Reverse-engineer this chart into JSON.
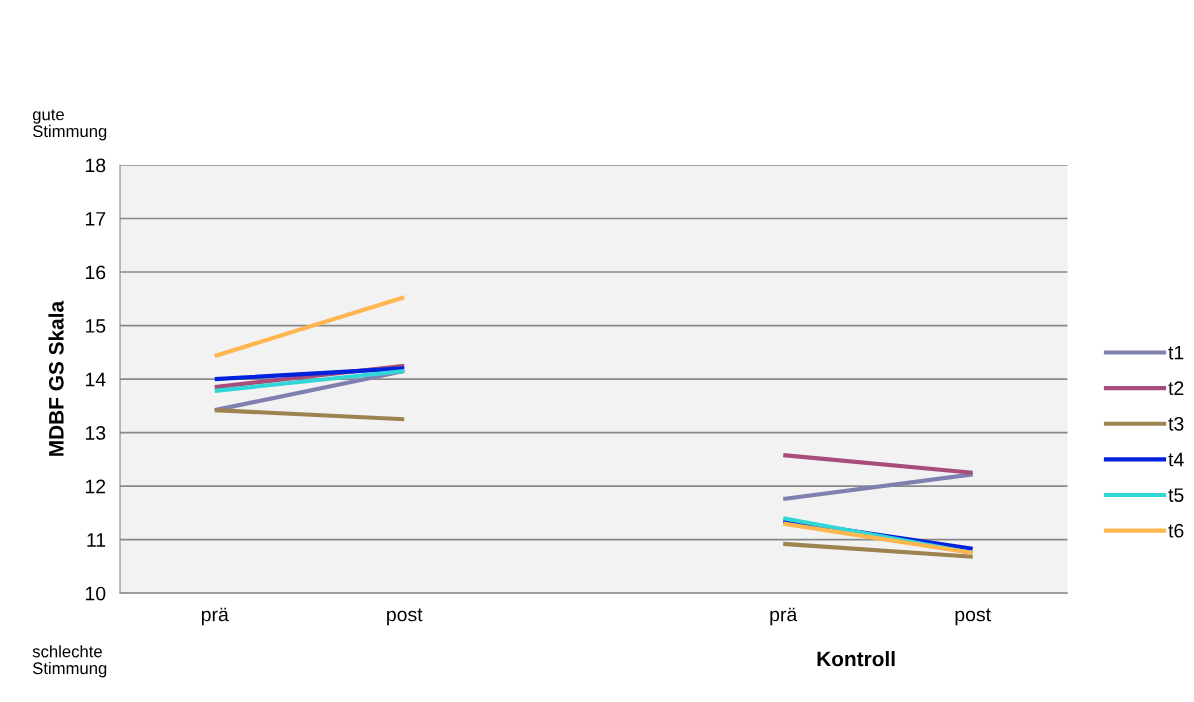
{
  "chart_data": {
    "type": "line",
    "ylabel": "MDBF GS Skala",
    "categories": [
      "prä",
      "post",
      null,
      "prä",
      "post"
    ],
    "series": [
      {
        "name": "t1",
        "color": "#8080b0",
        "values": [
          13.42,
          14.15,
          null,
          11.76,
          12.22
        ]
      },
      {
        "name": "t2",
        "color": "#a84c7c",
        "values": [
          13.85,
          14.25,
          null,
          12.58,
          12.25
        ]
      },
      {
        "name": "t3",
        "color": "#9c8350",
        "values": [
          13.42,
          13.25,
          null,
          10.92,
          10.68
        ]
      },
      {
        "name": "t4",
        "color": "#0022dd",
        "values": [
          14.0,
          14.2,
          null,
          11.35,
          10.83
        ]
      },
      {
        "name": "t5",
        "color": "#33d6d6",
        "values": [
          13.78,
          14.15,
          null,
          11.4,
          10.75
        ]
      },
      {
        "name": "t6",
        "color": "#ffb64f",
        "values": [
          14.43,
          15.53,
          null,
          11.3,
          10.75
        ]
      }
    ],
    "ylim": [
      10,
      18
    ],
    "yticks": [
      10,
      11,
      12,
      13,
      14,
      15,
      16,
      17,
      18
    ],
    "grid": "y",
    "legend": "right",
    "marker": "none",
    "line_style": "solid",
    "annotations": [
      "gute\nStimmung",
      "schlechte\nStimmung",
      "Kontroll"
    ]
  }
}
